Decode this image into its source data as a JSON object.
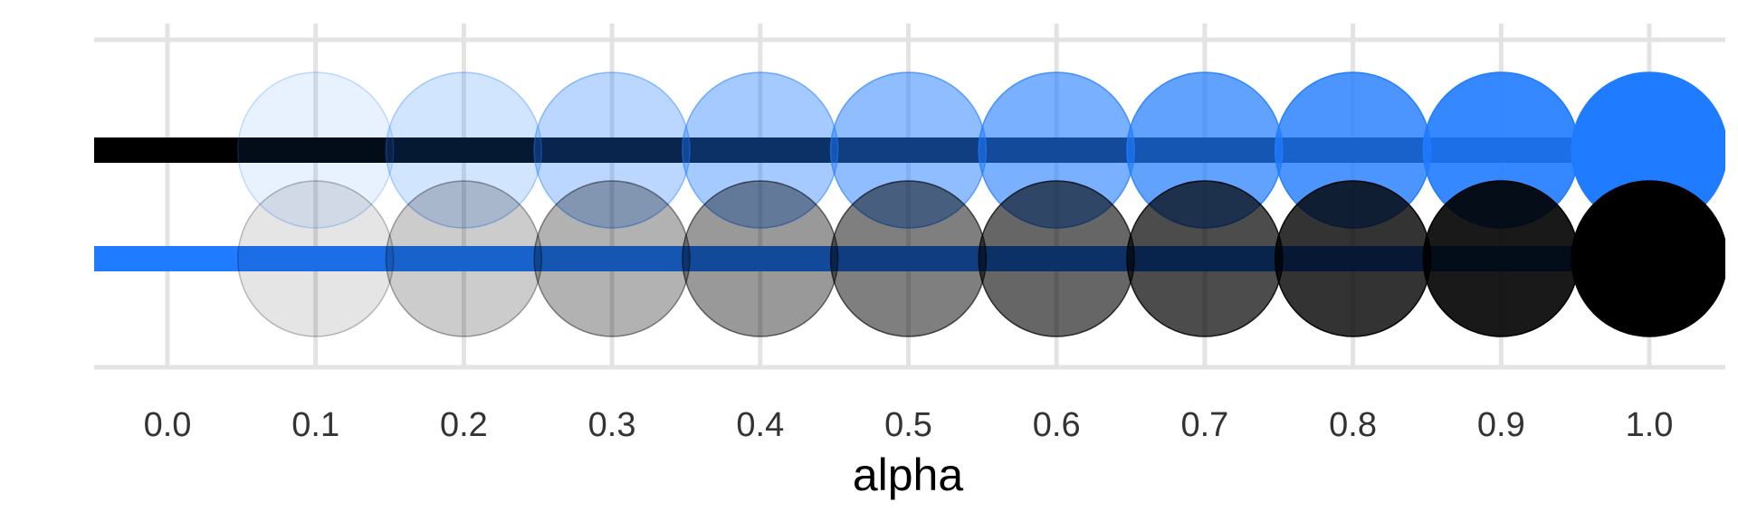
{
  "chart_data": {
    "type": "scatter",
    "xlabel": "alpha",
    "x_ticks": [
      "0.0",
      "0.1",
      "0.2",
      "0.3",
      "0.4",
      "0.5",
      "0.6",
      "0.7",
      "0.8",
      "0.9",
      "1.0"
    ],
    "xlim": [
      -0.05,
      1.05
    ],
    "grid": true,
    "rows": [
      {
        "line_color": "#000000",
        "point_color": "#1F7BFF",
        "alpha": [
          0.1,
          0.2,
          0.3,
          0.4,
          0.5,
          0.6,
          0.7,
          0.8,
          0.9,
          1.0
        ]
      },
      {
        "line_color": "#1F7BFF",
        "point_color": "#000000",
        "alpha": [
          0.1,
          0.2,
          0.3,
          0.4,
          0.5,
          0.6,
          0.7,
          0.8,
          0.9,
          1.0
        ]
      }
    ]
  },
  "colors": {
    "grid": "#E3E3E3",
    "tick_text": "#333333",
    "background": "#FFFFFF"
  }
}
